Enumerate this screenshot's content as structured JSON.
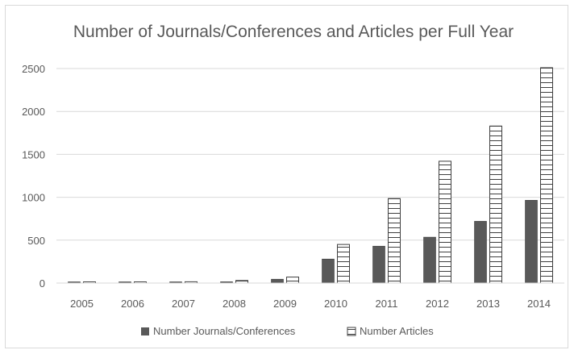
{
  "chart_data": {
    "type": "bar",
    "title": "Number of Journals/Conferences and Articles per Full Year",
    "xlabel": "",
    "ylabel": "",
    "categories": [
      "2005",
      "2006",
      "2007",
      "2008",
      "2009",
      "2010",
      "2011",
      "2012",
      "2013",
      "2014"
    ],
    "ylim": [
      0,
      2500
    ],
    "yticks": [
      "0",
      "500",
      "1000",
      "1500",
      "2000",
      "2500"
    ],
    "grid": true,
    "legend_position": "bottom",
    "series": [
      {
        "name": "Number Journals/Conferences",
        "values": [
          5,
          5,
          8,
          15,
          45,
          280,
          430,
          535,
          720,
          965
        ],
        "fill": "#595959",
        "pattern": "solid"
      },
      {
        "name": "Number Articles",
        "values": [
          5,
          5,
          15,
          30,
          70,
          450,
          985,
          1420,
          1830,
          2510
        ],
        "fill": "#ffffff",
        "pattern": "horizontal-lines"
      }
    ]
  }
}
